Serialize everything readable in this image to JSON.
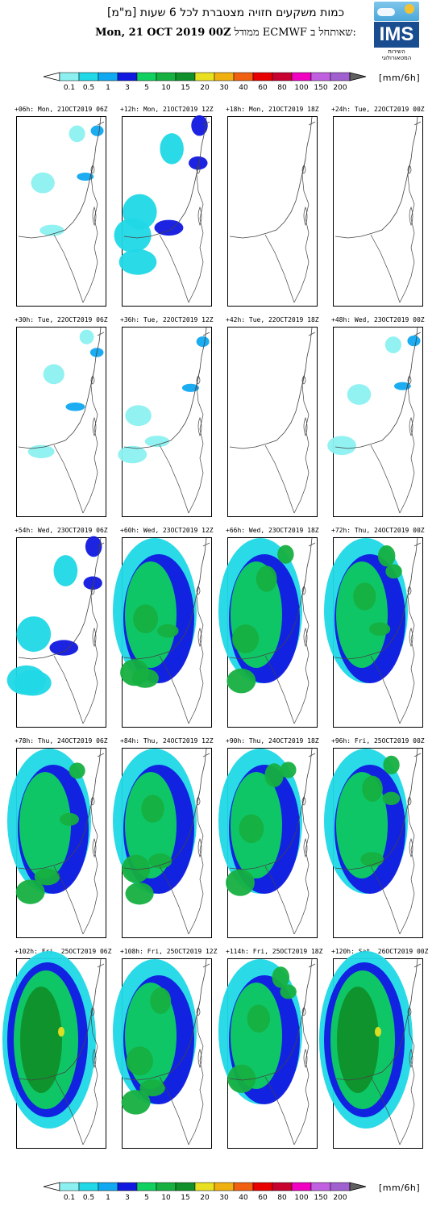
{
  "header": {
    "title_he": "כמות משקעים חזויה מצטברת לכל 6 שעות [מ\"מ]",
    "model_he": "ממודל ECMWF שאותחל ב:",
    "run_date": "Mon, 21 OCT 2019 00Z"
  },
  "logo": {
    "text": "IMS",
    "caption_he": "השירות המטאורולוגי"
  },
  "colorbar": {
    "units": "[mm/6h]",
    "ticks": [
      "0.1",
      "0.5",
      "1",
      "3",
      "5",
      "10",
      "15",
      "20",
      "30",
      "40",
      "60",
      "80",
      "100",
      "150",
      "200"
    ],
    "colors": [
      "#8cf0f0",
      "#20d8e6",
      "#10a8f0",
      "#1018e0",
      "#10d060",
      "#16b040",
      "#10902a",
      "#e8e020",
      "#f0b010",
      "#f06010",
      "#e80000",
      "#c80030",
      "#f000c0",
      "#c060e0",
      "#a060d0"
    ],
    "end_left": "#ffffff",
    "end_right": "#606060"
  },
  "chart_data": {
    "type": "heatmap",
    "title": "כמות משקעים חזויה מצטברת לכל 6 שעות [מ\"מ]",
    "model": "ECMWF",
    "init": "Mon, 21 OCT 2019 00Z",
    "units": "mm/6h",
    "levels": [
      0.1,
      0.5,
      1,
      3,
      5,
      10,
      15,
      20,
      30,
      40,
      60,
      80,
      100,
      150,
      200
    ],
    "panels": [
      {
        "label": "+06h: Mon, 21OCT2019 06Z",
        "intensity": 1
      },
      {
        "label": "+12h: Mon, 21OCT2019 12Z",
        "intensity": 2
      },
      {
        "label": "+18h: Mon, 21OCT2019 18Z",
        "intensity": 0
      },
      {
        "label": "+24h: Tue, 22OCT2019 00Z",
        "intensity": 0
      },
      {
        "label": "+30h: Tue, 22OCT2019 06Z",
        "intensity": 1
      },
      {
        "label": "+36h: Tue, 22OCT2019 12Z",
        "intensity": 1
      },
      {
        "label": "+42h: Tue, 22OCT2019 18Z",
        "intensity": 0
      },
      {
        "label": "+48h: Wed, 23OCT2019 00Z",
        "intensity": 1
      },
      {
        "label": "+54h: Wed, 23OCT2019 06Z",
        "intensity": 2
      },
      {
        "label": "+60h: Wed, 23OCT2019 12Z",
        "intensity": 3
      },
      {
        "label": "+66h: Wed, 23OCT2019 18Z",
        "intensity": 3
      },
      {
        "label": "+72h: Thu, 24OCT2019 00Z",
        "intensity": 3
      },
      {
        "label": "+78h: Thu, 24OCT2019 06Z",
        "intensity": 3
      },
      {
        "label": "+84h: Thu, 24OCT2019 12Z",
        "intensity": 3
      },
      {
        "label": "+90h: Thu, 24OCT2019 18Z",
        "intensity": 3
      },
      {
        "label": "+96h: Fri, 25OCT2019 00Z",
        "intensity": 3
      },
      {
        "label": "+102h: Fri, 25OCT2019 06Z",
        "intensity": 4
      },
      {
        "label": "+108h: Fri, 25OCT2019 12Z",
        "intensity": 3
      },
      {
        "label": "+114h: Fri, 25OCT2019 18Z",
        "intensity": 3
      },
      {
        "label": "+120h: Sat, 26OCT2019 00Z",
        "intensity": 4
      }
    ]
  }
}
